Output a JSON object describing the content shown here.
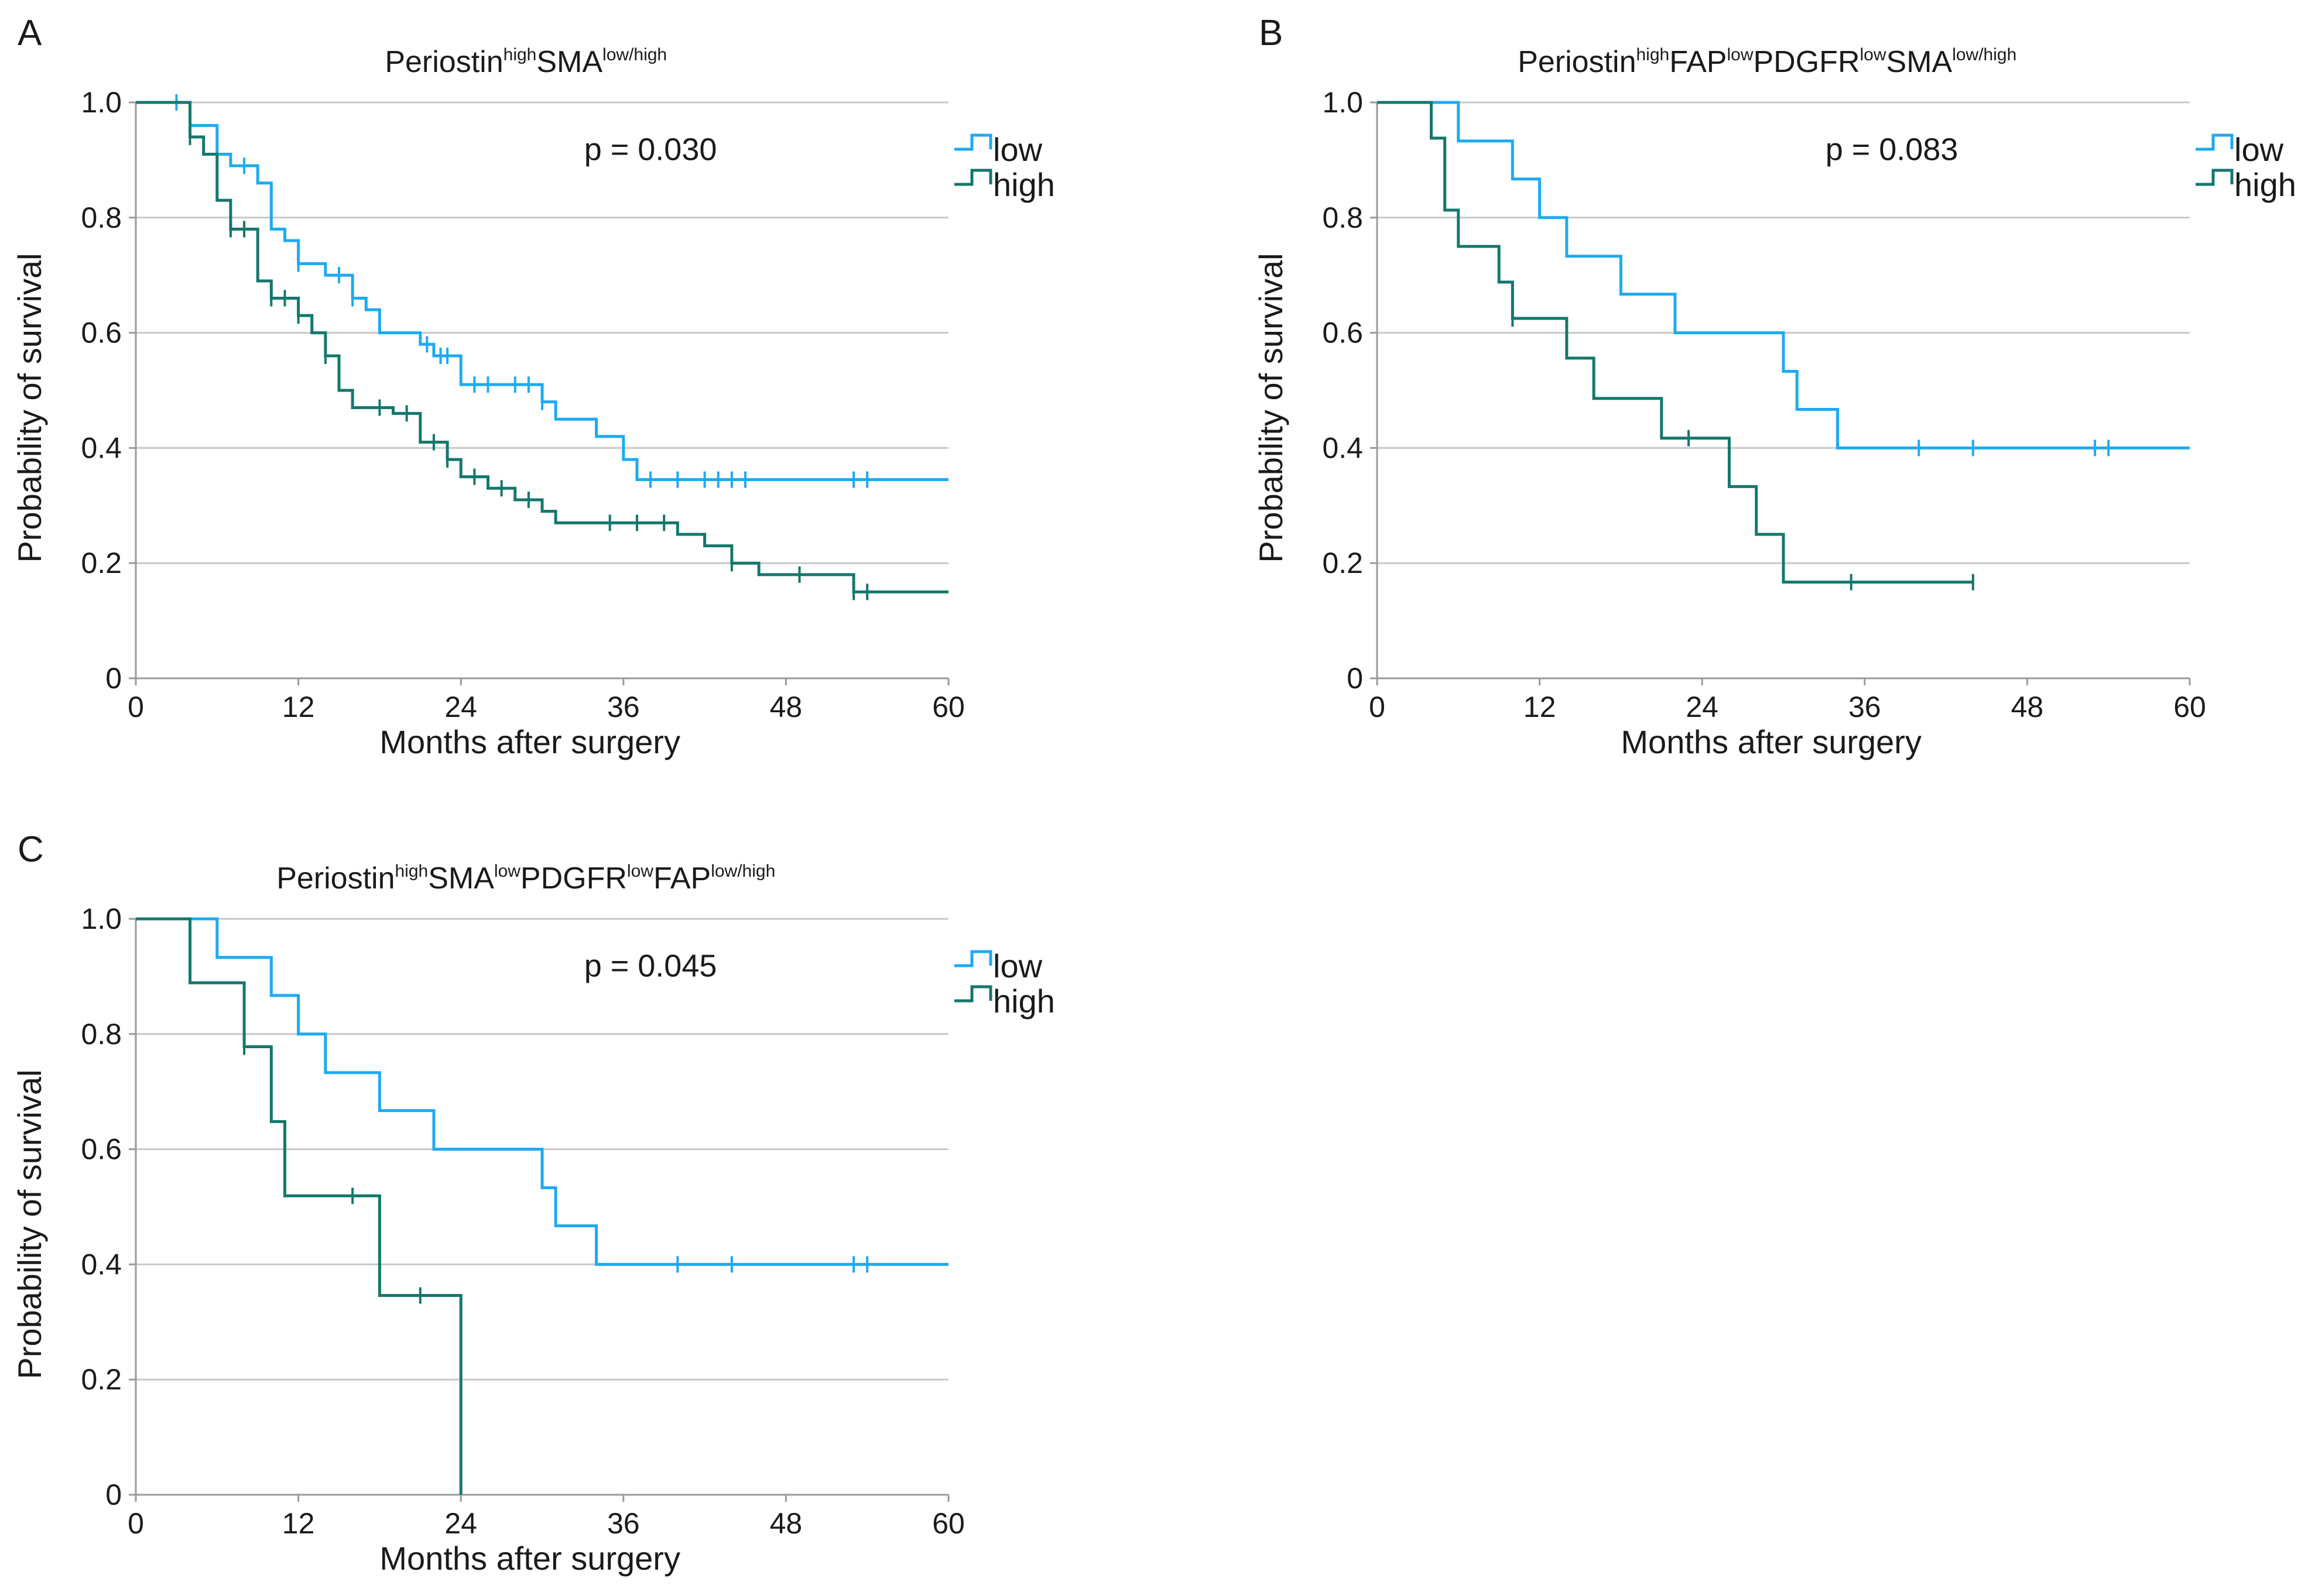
{
  "legend": [
    "low",
    "high"
  ],
  "colors": {
    "low": "#1eaaf1",
    "high": "#13786c"
  },
  "chart_data": [
    {
      "type": "line",
      "panel": "A",
      "title": [
        {
          "text": "Periostin",
          "sup": false
        },
        {
          "text": "high",
          "sup": true
        },
        {
          "text": "SMA",
          "sup": false
        },
        {
          "text": "low/high",
          "sup": true
        }
      ],
      "pvalue": "p = 0.030",
      "xlabel": "Months after surgery",
      "ylabel": "Probability of survival",
      "xlim": [
        0,
        60
      ],
      "ylim": [
        0,
        1
      ],
      "xticks": [
        0,
        12,
        24,
        36,
        48,
        60
      ],
      "yticks": [
        0,
        0.2,
        0.4,
        0.6,
        0.8,
        1.0
      ],
      "ytick_labels": [
        "0",
        "0.2",
        "0.4",
        "0.6",
        "0.8",
        "1.0"
      ],
      "grid": true,
      "series": [
        {
          "name": "low",
          "x": [
            0,
            4,
            6,
            7,
            9,
            10,
            11,
            12,
            14,
            16,
            17,
            18,
            21,
            22,
            24,
            30,
            31,
            34,
            36,
            37,
            60
          ],
          "y": [
            1.0,
            0.96,
            0.91,
            0.89,
            0.86,
            0.78,
            0.76,
            0.72,
            0.7,
            0.66,
            0.64,
            0.6,
            0.58,
            0.56,
            0.51,
            0.48,
            0.45,
            0.42,
            0.38,
            0.345,
            0.345
          ],
          "censored": [
            3,
            8,
            12,
            15,
            16,
            21.5,
            22.5,
            23,
            25,
            26,
            28,
            29,
            30,
            38,
            40,
            42,
            43,
            44,
            45,
            53,
            54
          ]
        },
        {
          "name": "high",
          "x": [
            0,
            4,
            5,
            6,
            7,
            9,
            10,
            12,
            13,
            14,
            15,
            16,
            19,
            21,
            23,
            24,
            26,
            28,
            30,
            31,
            38,
            40,
            42,
            44,
            46,
            53,
            60
          ],
          "y": [
            1.0,
            0.94,
            0.91,
            0.83,
            0.78,
            0.69,
            0.66,
            0.63,
            0.6,
            0.56,
            0.5,
            0.47,
            0.46,
            0.41,
            0.38,
            0.35,
            0.33,
            0.31,
            0.29,
            0.27,
            0.27,
            0.25,
            0.23,
            0.2,
            0.18,
            0.15,
            0.15
          ],
          "censored": [
            4,
            7,
            8,
            10,
            11,
            12,
            14,
            18,
            20,
            22,
            23,
            25,
            27,
            29,
            35,
            37,
            39,
            44,
            49,
            53,
            54
          ]
        }
      ]
    },
    {
      "type": "line",
      "panel": "B",
      "title": [
        {
          "text": "Periostin",
          "sup": false
        },
        {
          "text": "high",
          "sup": true
        },
        {
          "text": "FAP",
          "sup": false
        },
        {
          "text": "low",
          "sup": true
        },
        {
          "text": "PDGFR",
          "sup": false
        },
        {
          "text": "low",
          "sup": true
        },
        {
          "text": "SMA",
          "sup": false
        },
        {
          "text": "low/high",
          "sup": true
        }
      ],
      "pvalue": "p = 0.083",
      "xlabel": "Months after surgery",
      "ylabel": "Probability of survival",
      "xlim": [
        0,
        60
      ],
      "ylim": [
        0,
        1
      ],
      "xticks": [
        0,
        12,
        24,
        36,
        48,
        60
      ],
      "yticks": [
        0,
        0.2,
        0.4,
        0.6,
        0.8,
        1.0
      ],
      "ytick_labels": [
        "0",
        "0.2",
        "0.4",
        "0.6",
        "0.8",
        "1.0"
      ],
      "grid": true,
      "series": [
        {
          "name": "low",
          "x": [
            0,
            6,
            10,
            12,
            14,
            18,
            22,
            30,
            31,
            34,
            60
          ],
          "y": [
            1.0,
            0.933,
            0.867,
            0.8,
            0.733,
            0.667,
            0.6,
            0.533,
            0.467,
            0.4,
            0.4
          ],
          "censored": [
            40,
            44,
            53,
            54
          ]
        },
        {
          "name": "high",
          "x": [
            0,
            4,
            5,
            6,
            9,
            10,
            14,
            16,
            21,
            26,
            28,
            30,
            44
          ],
          "y": [
            1.0,
            0.938,
            0.813,
            0.75,
            0.688,
            0.625,
            0.556,
            0.486,
            0.417,
            0.333,
            0.25,
            0.167,
            0.167
          ],
          "censored": [
            10,
            23,
            35,
            44
          ]
        }
      ]
    },
    {
      "type": "line",
      "panel": "C",
      "title": [
        {
          "text": "Periostin",
          "sup": false
        },
        {
          "text": "high",
          "sup": true
        },
        {
          "text": "SMA",
          "sup": false
        },
        {
          "text": "low",
          "sup": true
        },
        {
          "text": "PDGFR",
          "sup": false
        },
        {
          "text": "low",
          "sup": true
        },
        {
          "text": "FAP",
          "sup": false
        },
        {
          "text": "low/high",
          "sup": true
        }
      ],
      "pvalue": "p = 0.045",
      "xlabel": "Months after surgery",
      "ylabel": "Probability of survival",
      "xlim": [
        0,
        60
      ],
      "ylim": [
        0,
        1
      ],
      "xticks": [
        0,
        12,
        24,
        36,
        48,
        60
      ],
      "yticks": [
        0,
        0.2,
        0.4,
        0.6,
        0.8,
        1.0
      ],
      "ytick_labels": [
        "0",
        "0.2",
        "0.4",
        "0.6",
        "0.8",
        "1.0"
      ],
      "grid": true,
      "series": [
        {
          "name": "low",
          "x": [
            0,
            6,
            10,
            12,
            14,
            18,
            22,
            30,
            31,
            34,
            60
          ],
          "y": [
            1.0,
            0.933,
            0.867,
            0.8,
            0.733,
            0.667,
            0.6,
            0.533,
            0.467,
            0.4,
            0.4
          ],
          "censored": [
            40,
            44,
            53,
            54
          ]
        },
        {
          "name": "high",
          "x": [
            0,
            4,
            8,
            10,
            11,
            16,
            18,
            24,
            24
          ],
          "y": [
            1.0,
            0.889,
            0.778,
            0.648,
            0.519,
            0.519,
            0.346,
            0.346,
            0.0
          ],
          "censored": [
            8,
            16,
            21
          ]
        }
      ]
    }
  ]
}
